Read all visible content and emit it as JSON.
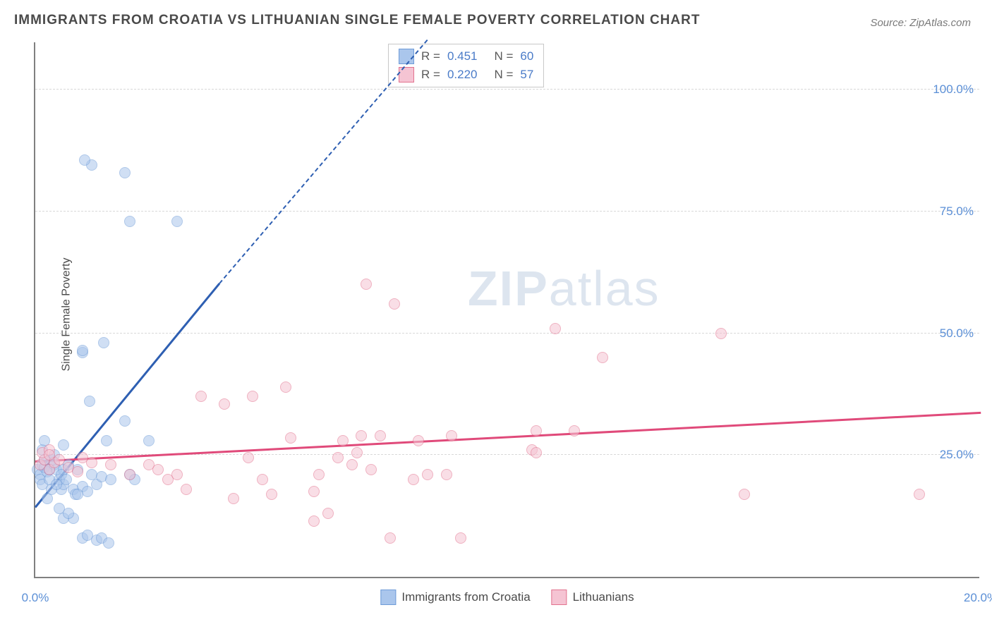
{
  "title": "IMMIGRANTS FROM CROATIA VS LITHUANIAN SINGLE FEMALE POVERTY CORRELATION CHART",
  "source": "Source: ZipAtlas.com",
  "y_axis_label": "Single Female Poverty",
  "watermark_a": "ZIP",
  "watermark_b": "atlas",
  "chart": {
    "type": "scatter",
    "background_color": "#ffffff",
    "grid_color": "#d8d8d8",
    "axis_color": "#808080",
    "tick_label_color": "#5b8fd6",
    "tick_fontsize": 17,
    "title_fontsize": 19,
    "title_color": "#4a4a4a",
    "xlim": [
      0,
      20
    ],
    "ylim": [
      0,
      110
    ],
    "x_ticks": [
      {
        "v": 0.0,
        "label": "0.0%"
      },
      {
        "v": 20.0,
        "label": "20.0%"
      }
    ],
    "y_ticks": [
      {
        "v": 25.0,
        "label": "25.0%"
      },
      {
        "v": 50.0,
        "label": "50.0%"
      },
      {
        "v": 75.0,
        "label": "75.0%"
      },
      {
        "v": 100.0,
        "label": "100.0%"
      }
    ],
    "marker_radius": 8,
    "marker_opacity": 0.55,
    "series": [
      {
        "name": "Immigrants from Croatia",
        "legend_label": "Immigrants from Croatia",
        "fill_color": "#aac6ec",
        "stroke_color": "#6f9cd8",
        "trend_color": "#2e5fb2",
        "R": "0.451",
        "N": "60",
        "trend": {
          "x1": 0,
          "y1": 14,
          "x2": 3.9,
          "y2": 60,
          "x2_dash": 8.3,
          "y2_dash": 110
        },
        "points": [
          [
            0.05,
            22
          ],
          [
            0.1,
            21
          ],
          [
            0.15,
            23
          ],
          [
            0.2,
            22.5
          ],
          [
            0.25,
            21.5
          ],
          [
            0.1,
            20
          ],
          [
            0.3,
            22
          ],
          [
            0.35,
            24
          ],
          [
            0.4,
            23
          ],
          [
            0.15,
            19
          ],
          [
            0.45,
            22
          ],
          [
            0.2,
            24
          ],
          [
            0.55,
            18
          ],
          [
            0.6,
            19
          ],
          [
            0.8,
            18
          ],
          [
            0.85,
            17
          ],
          [
            1.0,
            18.5
          ],
          [
            1.1,
            17.5
          ],
          [
            0.6,
            22
          ],
          [
            0.7,
            23
          ],
          [
            0.9,
            22
          ],
          [
            1.2,
            21
          ],
          [
            1.3,
            19
          ],
          [
            1.4,
            20.5
          ],
          [
            1.0,
            8
          ],
          [
            1.1,
            8.5
          ],
          [
            1.3,
            7.5
          ],
          [
            1.4,
            8
          ],
          [
            1.55,
            7
          ],
          [
            0.8,
            12
          ],
          [
            0.6,
            12
          ],
          [
            0.7,
            13
          ],
          [
            0.5,
            14
          ],
          [
            0.4,
            25
          ],
          [
            0.6,
            27
          ],
          [
            1.5,
            28
          ],
          [
            2.4,
            28
          ],
          [
            1.15,
            36
          ],
          [
            1.9,
            32
          ],
          [
            1.45,
            48
          ],
          [
            1.0,
            46
          ],
          [
            1.0,
            46.5
          ],
          [
            2.0,
            73
          ],
          [
            3.0,
            73
          ],
          [
            1.2,
            84.5
          ],
          [
            1.05,
            85.5
          ],
          [
            1.9,
            83
          ],
          [
            0.15,
            26
          ],
          [
            0.2,
            28
          ],
          [
            0.3,
            20
          ],
          [
            0.35,
            18
          ],
          [
            0.25,
            16
          ],
          [
            0.5,
            20
          ],
          [
            0.55,
            21
          ],
          [
            0.65,
            20
          ],
          [
            0.45,
            19
          ],
          [
            0.9,
            17
          ],
          [
            1.6,
            20
          ],
          [
            2.0,
            21
          ],
          [
            2.1,
            20
          ]
        ]
      },
      {
        "name": "Lithuanians",
        "legend_label": "Lithuanians",
        "fill_color": "#f5c4d3",
        "stroke_color": "#e2738f",
        "trend_color": "#e04a7a",
        "R": "0.220",
        "N": "57",
        "trend": {
          "x1": 0,
          "y1": 23.5,
          "x2": 20,
          "y2": 33.5
        },
        "points": [
          [
            0.1,
            23
          ],
          [
            0.2,
            24
          ],
          [
            0.3,
            22
          ],
          [
            0.4,
            23.5
          ],
          [
            0.15,
            25.5
          ],
          [
            0.3,
            26
          ],
          [
            1.2,
            23.5
          ],
          [
            1.6,
            23
          ],
          [
            2.4,
            23
          ],
          [
            2.6,
            22
          ],
          [
            2.8,
            20
          ],
          [
            3.0,
            21
          ],
          [
            3.5,
            37
          ],
          [
            4.0,
            35.5
          ],
          [
            4.6,
            37
          ],
          [
            5.3,
            39
          ],
          [
            5.4,
            28.5
          ],
          [
            4.8,
            20
          ],
          [
            5.0,
            17
          ],
          [
            6.0,
            21
          ],
          [
            6.2,
            13
          ],
          [
            6.5,
            28
          ],
          [
            6.7,
            23
          ],
          [
            7.1,
            22
          ],
          [
            7.3,
            29
          ],
          [
            7.5,
            8
          ],
          [
            8.0,
            20
          ],
          [
            8.1,
            28
          ],
          [
            8.3,
            21
          ],
          [
            7.0,
            60
          ],
          [
            7.6,
            56
          ],
          [
            9.0,
            8
          ],
          [
            8.7,
            21
          ],
          [
            8.8,
            29
          ],
          [
            5.9,
            11.5
          ],
          [
            5.9,
            17.5
          ],
          [
            10.5,
            26
          ],
          [
            10.6,
            25.5
          ],
          [
            10.6,
            30
          ],
          [
            11.0,
            51
          ],
          [
            11.4,
            30
          ],
          [
            12.0,
            45
          ],
          [
            14.5,
            50
          ],
          [
            15.0,
            17
          ],
          [
            18.7,
            17
          ],
          [
            0.3,
            25
          ],
          [
            0.5,
            24
          ],
          [
            0.7,
            22.5
          ],
          [
            0.9,
            21.5
          ],
          [
            1.0,
            24.5
          ],
          [
            2.0,
            21
          ],
          [
            3.2,
            18
          ],
          [
            4.2,
            16
          ],
          [
            4.5,
            24.5
          ],
          [
            6.4,
            24.5
          ],
          [
            6.8,
            25.5
          ],
          [
            6.9,
            29
          ]
        ]
      }
    ],
    "legend_top": {
      "border_color": "#c8c8c8",
      "text_color": "#5a5a5a",
      "value_color": "#4a7bc8",
      "R_label": "R =",
      "N_label": "N ="
    },
    "legend_bottom": {
      "text_color": "#4a4a4a"
    }
  }
}
